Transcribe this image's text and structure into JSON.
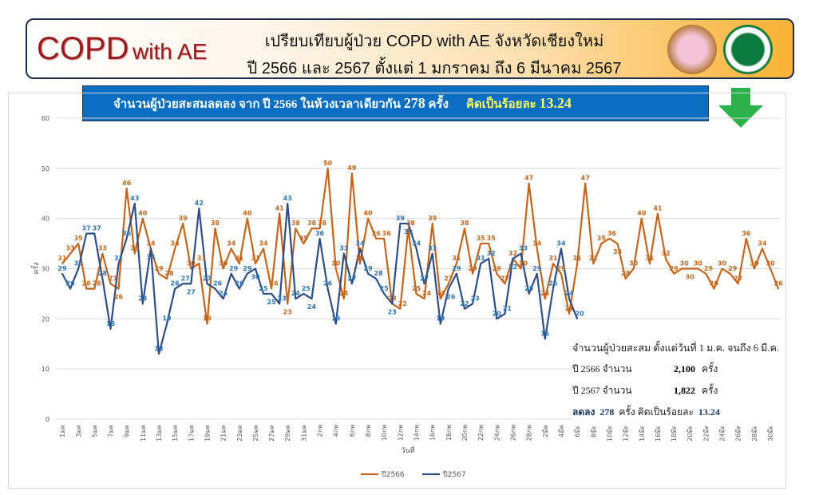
{
  "header": {
    "logo_main": "COPD",
    "logo_sub": "with AE",
    "title_line1": "เปรียบเทียบผู้ป่วย COPD with AE จังหวัดเชียงใหม่",
    "title_line2": "ปี 2566 และ 2567 ตั้งแต่ 1 มกราคม ถึง 6 มีนาคม 2567"
  },
  "banner": {
    "text1": "จำนวนผู้ป่วยสะสมลดลง   จาก ปี 2566 ในห้วงเวลาเดียวกัน ",
    "count": "278",
    "unit": "  ครั้ง",
    "percent_label": "คิดเป็นร้อยละ  ",
    "percent": "13.24",
    "arrow_icon": "down-arrow-green",
    "arrow_color": "#2bb24c"
  },
  "summary": {
    "heading": "จำนวนผู้ป่วยสะสม ตั้งแต่วันที่ 1 ม.ค. จนถึง 6 มี.ค.",
    "row1_label": "ปี 2566 จำนวน",
    "row1_value": "2,100",
    "row1_unit": "ครั้ง",
    "row2_label": "ปี 2567 จำนวน",
    "row2_value": "1,822",
    "row2_unit": "ครั้ง",
    "diff_label": "ลดลง",
    "diff_value": "278",
    "diff_text": "ครั้ง คิดเป็นร้อยละ",
    "diff_percent": "13.24"
  },
  "chart_data": {
    "type": "line",
    "xlabel": "วันที่",
    "ylabel": "ครั้ง",
    "ylim": [
      0,
      60
    ],
    "yticks": [
      0,
      10,
      20,
      30,
      40,
      50,
      60
    ],
    "grid": true,
    "legend_placement": "bottom",
    "x_tick_labels": [
      "1มค",
      "3มค",
      "5มค",
      "7มค",
      "9มค",
      "11มค",
      "13มค",
      "15มค",
      "17มค",
      "19มค",
      "21มค",
      "23มค",
      "25มค",
      "27มค",
      "29มค",
      "31มค",
      "2กพ",
      "4กพ",
      "6กพ",
      "8กพ",
      "10กพ",
      "12กพ",
      "14กพ",
      "16กพ",
      "18กพ",
      "20กพ",
      "22กพ",
      "24กพ",
      "26กพ",
      "28กพ",
      "2มีค",
      "4มีค",
      "6มีค",
      "8มีค",
      "10มีค",
      "12มีค",
      "14มีค",
      "16มีค",
      "18มีค",
      "20มีค",
      "22มีค",
      "24มีค",
      "26มีค",
      "28มีค",
      "30มีค"
    ],
    "series": [
      {
        "name": "ปี2566",
        "color": "#c5651c",
        "values": [
          31,
          33,
          35,
          26,
          26,
          33,
          27,
          26,
          46,
          33,
          40,
          34,
          29,
          28,
          34,
          39,
          30,
          31,
          19,
          38,
          30,
          34,
          31,
          40,
          31,
          34,
          26,
          41,
          23,
          38,
          35,
          38,
          38,
          50,
          30,
          24,
          49,
          31,
          40,
          36,
          36,
          23,
          22,
          38,
          25,
          24,
          39,
          24,
          27,
          31,
          38,
          29,
          35,
          35,
          29,
          27,
          32,
          30,
          47,
          34,
          24,
          31,
          29,
          21,
          31,
          47,
          31,
          35,
          36,
          35,
          28,
          30,
          40,
          31,
          41,
          32,
          29,
          30,
          30,
          30,
          29,
          26,
          30,
          29,
          27,
          36,
          30,
          34,
          30,
          26
        ]
      },
      {
        "name": "ปี2567",
        "color": "#2e4e87",
        "values": [
          29,
          26,
          30,
          37,
          37,
          28,
          18,
          31,
          36,
          43,
          23,
          34,
          13,
          19,
          26,
          27,
          27,
          42,
          27,
          26,
          24,
          29,
          26,
          29,
          30,
          25,
          25,
          23,
          43,
          24,
          25,
          24,
          36,
          26,
          19,
          33,
          27,
          34,
          29,
          28,
          25,
          23,
          39,
          39,
          34,
          27,
          33,
          19,
          26,
          29,
          22,
          23,
          31,
          32,
          20,
          21,
          32,
          33,
          25,
          29,
          16,
          26,
          34,
          24,
          20
        ]
      }
    ]
  }
}
